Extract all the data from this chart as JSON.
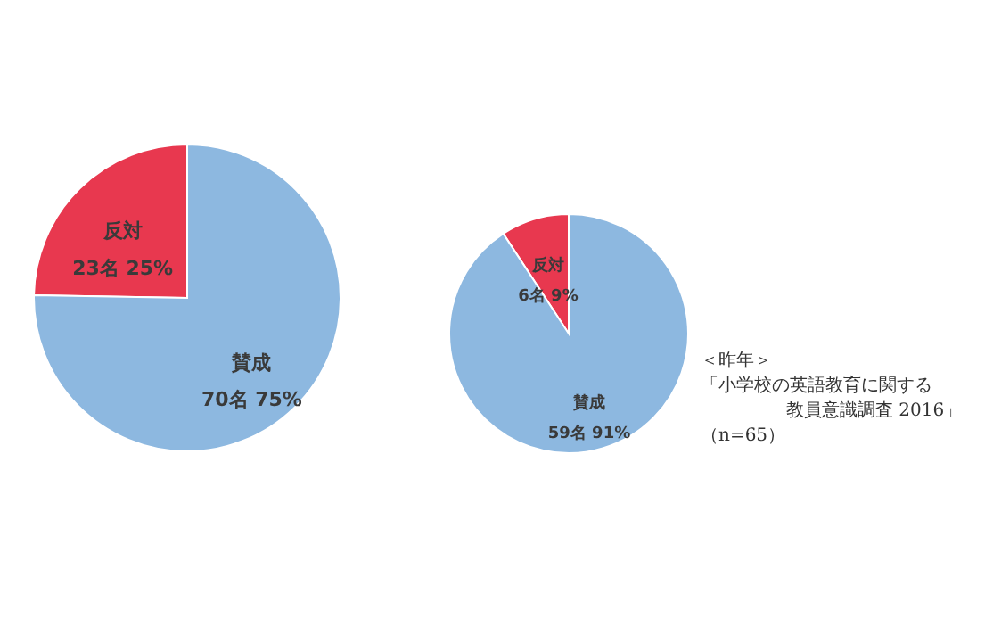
{
  "chart_data": [
    {
      "type": "pie",
      "categories": [
        "反対",
        "賛成"
      ],
      "values": [
        23,
        70
      ],
      "value_labels": [
        "23名 25%",
        "70名 75%"
      ],
      "colors": [
        "#e8384f",
        "#8db8e0"
      ]
    },
    {
      "type": "pie",
      "categories": [
        "反対",
        "賛成"
      ],
      "values": [
        6,
        59
      ],
      "value_labels": [
        "6名 9%",
        "59名 91%"
      ],
      "colors": [
        "#e8384f",
        "#8db8e0"
      ],
      "annotations": [
        "＜昨年＞",
        "「小学校の英語教育に関する",
        "教員意識調査 2016」",
        "（n=65）"
      ]
    }
  ]
}
